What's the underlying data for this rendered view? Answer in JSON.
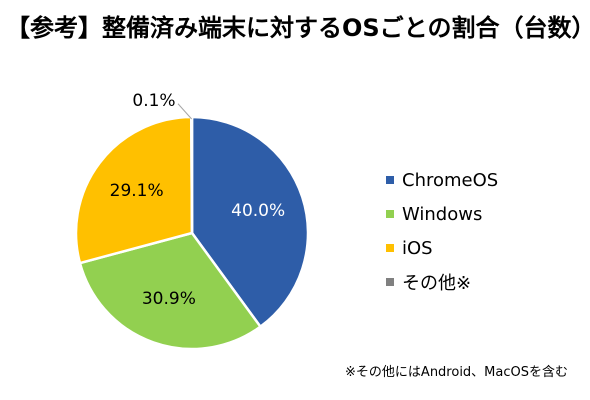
{
  "title": "【参考】整備済み端末に対するOSごとの割合（台数）",
  "footnote": "※その他にはAndroid、MacOSを含む",
  "chart_data": {
    "type": "pie",
    "title": "",
    "start_angle_deg": 0,
    "direction": "clockwise",
    "slices": [
      {
        "name": "ChromeOS",
        "value": 40.0,
        "label": "40.0%",
        "color": "#2E5DA8",
        "label_color": "#ffffff"
      },
      {
        "name": "Windows",
        "value": 30.9,
        "label": "30.9%",
        "color": "#92D050",
        "label_color": "#000000"
      },
      {
        "name": "iOS",
        "value": 29.1,
        "label": "29.1%",
        "color": "#FFC000",
        "label_color": "#000000"
      },
      {
        "name": "その他※",
        "value": 0.1,
        "label": "0.1%",
        "color": "#808080",
        "label_color": "#000000",
        "label_outside": true
      }
    ],
    "legend": {
      "position": "right",
      "items": [
        "ChromeOS",
        "Windows",
        "iOS",
        "その他※"
      ]
    },
    "slice_border_color": "#ffffff"
  }
}
